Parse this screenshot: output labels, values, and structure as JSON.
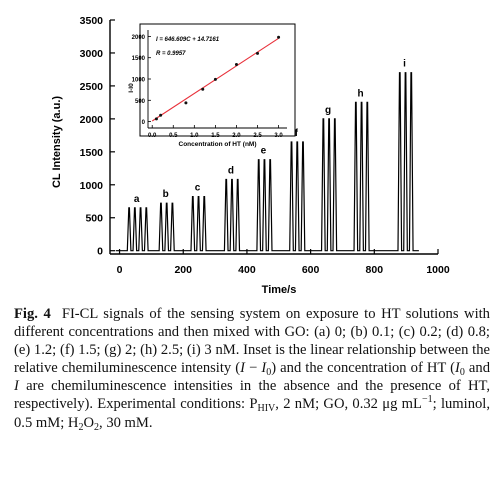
{
  "chart_data": [
    {
      "type": "line",
      "xlabel": "Time/s",
      "ylabel": "CL Intensity (a.u.)",
      "xlim": [
        -30,
        1000
      ],
      "ylim": [
        -50,
        3500
      ],
      "xticks": [
        "0",
        "200",
        "400",
        "600",
        "800",
        "1000"
      ],
      "yticks": [
        "0",
        "500",
        "1000",
        "1500",
        "2000",
        "2500",
        "3000",
        "3500"
      ],
      "groups": [
        {
          "label": "a",
          "peak_times": [
            30,
            48,
            66,
            84
          ],
          "peak_height": 650,
          "concentration_nM": "0"
        },
        {
          "label": "b",
          "peak_times": [
            130,
            148,
            166
          ],
          "peak_height": 720,
          "concentration_nM": "0.1"
        },
        {
          "label": "c",
          "peak_times": [
            230,
            248,
            266
          ],
          "peak_height": 820,
          "concentration_nM": "0.2"
        },
        {
          "label": "d",
          "peak_times": [
            335,
            353,
            371
          ],
          "peak_height": 1080,
          "concentration_nM": "0.8"
        },
        {
          "label": "e",
          "peak_times": [
            437,
            455,
            473
          ],
          "peak_height": 1380,
          "concentration_nM": "1.2"
        },
        {
          "label": "f",
          "peak_times": [
            540,
            558,
            576
          ],
          "peak_height": 1650,
          "concentration_nM": "1.5"
        },
        {
          "label": "g",
          "peak_times": [
            640,
            658,
            676
          ],
          "peak_height": 2000,
          "concentration_nM": "2"
        },
        {
          "label": "h",
          "peak_times": [
            742,
            760,
            778
          ],
          "peak_height": 2250,
          "concentration_nM": "2.5"
        },
        {
          "label": "i",
          "peak_times": [
            880,
            898,
            916
          ],
          "peak_height": 2700,
          "concentration_nM": "3"
        }
      ],
      "baseline": 0
    },
    {
      "type": "scatter",
      "inset": true,
      "xlabel": "Concentration of HT (nM)",
      "ylabel": "I-I0",
      "xlim": [
        -0.1,
        3.2
      ],
      "ylim": [
        -150,
        2150
      ],
      "xticks": [
        "0.0",
        "0.5",
        "1.0",
        "1.5",
        "2.0",
        "2.5",
        "3.0"
      ],
      "yticks": [
        "0",
        "500",
        "1000",
        "1500",
        "2000"
      ],
      "points": [
        {
          "x": 0.1,
          "y": 65
        },
        {
          "x": 0.2,
          "y": 150
        },
        {
          "x": 0.8,
          "y": 440
        },
        {
          "x": 1.2,
          "y": 760
        },
        {
          "x": 1.5,
          "y": 990
        },
        {
          "x": 2.0,
          "y": 1340
        },
        {
          "x": 2.5,
          "y": 1600
        },
        {
          "x": 3.0,
          "y": 1980
        }
      ],
      "fit": {
        "slope": 646.609,
        "intercept": 14.7161,
        "color": "#e8303a"
      },
      "equation": "I = 646.609C + 14.7161",
      "r_label": "R = 0.9957"
    }
  ],
  "caption": {
    "label": "Fig. 4",
    "text1": "FI-CL signals of the sensing system on exposure to HT solutions with different concentrations and then mixed with GO: (a) 0; (b) 0.1; (c) 0.2; (d) 0.8; (e) 1.2; (f) 1.5; (g) 2; (h) 2.5; (i) 3 nM. Inset is the linear relationship between the relative chemiluminescence intensity (",
    "i_sym": "I",
    "minus": " − ",
    "i0_sym": "I",
    "i0_sub": "0",
    "text2": ") and the concentration of HT (",
    "text3": " and ",
    "text4": " are chemiluminescence intensities in the absence and the presence of HT, respectively). Experimental conditions: P",
    "hiv_sub": "HIV",
    "text5": ", 2 nM; GO, 0.32 μg mL",
    "sup": "−1",
    "text6": "; luminol, 0.5 mM; H",
    "h_sub": "2",
    "o_text": "O",
    "o_sub": "2",
    "text7": ", 30 mM."
  }
}
